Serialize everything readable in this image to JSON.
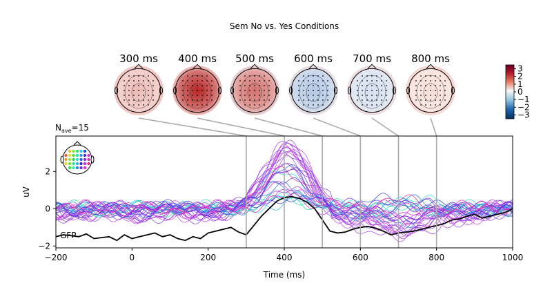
{
  "chart_data": {
    "type": "line",
    "title": "Sem No vs. Yes Conditions",
    "nave_label": "N",
    "nave_sub": "ave",
    "nave_value": "=15",
    "xlabel": "Time (ms)",
    "ylabel": "uV",
    "xlim": [
      -200,
      1000
    ],
    "ylim": [
      -2.1,
      3.9
    ],
    "xticks": [
      -200,
      0,
      200,
      400,
      600,
      800,
      1000
    ],
    "yticks": [
      -2,
      0,
      2
    ],
    "gfp_label": "GFP",
    "topomap_times_ms": [
      300,
      400,
      500,
      600,
      700,
      800
    ],
    "topomap_labels": [
      "300 ms",
      "400 ms",
      "500 ms",
      "600 ms",
      "700 ms",
      "800 ms"
    ],
    "topomap_intensity": [
      0.25,
      0.95,
      0.6,
      -0.3,
      -0.12,
      0.08
    ],
    "colorbar": {
      "ticks": [
        3,
        2,
        1,
        0,
        -1,
        -2,
        -3
      ],
      "labels": [
        "3",
        "2",
        "1",
        "0",
        "−1",
        "−2",
        "−3"
      ],
      "range": [
        -3.5,
        3.5
      ]
    },
    "gfp_series": {
      "name": "GFP",
      "x": [
        -200,
        -180,
        -160,
        -140,
        -120,
        -100,
        -80,
        -60,
        -40,
        -20,
        0,
        20,
        40,
        60,
        80,
        100,
        120,
        140,
        160,
        180,
        200,
        220,
        240,
        260,
        280,
        300,
        320,
        340,
        360,
        380,
        400,
        420,
        440,
        460,
        480,
        500,
        520,
        540,
        560,
        580,
        600,
        620,
        640,
        660,
        680,
        700,
        720,
        740,
        760,
        780,
        800,
        820,
        840,
        860,
        880,
        900,
        920,
        940,
        960,
        980,
        1000
      ],
      "y": [
        -1.5,
        -1.4,
        -1.45,
        -1.5,
        -1.35,
        -1.6,
        -1.55,
        -1.5,
        -1.7,
        -1.4,
        -1.6,
        -1.5,
        -1.4,
        -1.3,
        -1.5,
        -1.4,
        -1.6,
        -1.7,
        -1.5,
        -1.6,
        -1.3,
        -1.2,
        -1.1,
        -1.0,
        -1.25,
        -1.4,
        -0.9,
        -0.4,
        0.0,
        0.4,
        0.6,
        0.65,
        0.55,
        0.35,
        0.0,
        -0.6,
        -1.2,
        -1.3,
        -1.25,
        -1.1,
        -1.0,
        -0.95,
        -1.05,
        -1.2,
        -1.4,
        -1.3,
        -1.25,
        -1.2,
        -1.1,
        -1.0,
        -0.9,
        -0.8,
        -0.6,
        -0.55,
        -0.4,
        -0.3,
        -0.5,
        -0.4,
        -0.3,
        -0.2,
        0.0
      ]
    },
    "channel_count": 32,
    "axes_color": "#000000",
    "connector_color": "#aaaaaa",
    "gfp_color": "#000000"
  }
}
